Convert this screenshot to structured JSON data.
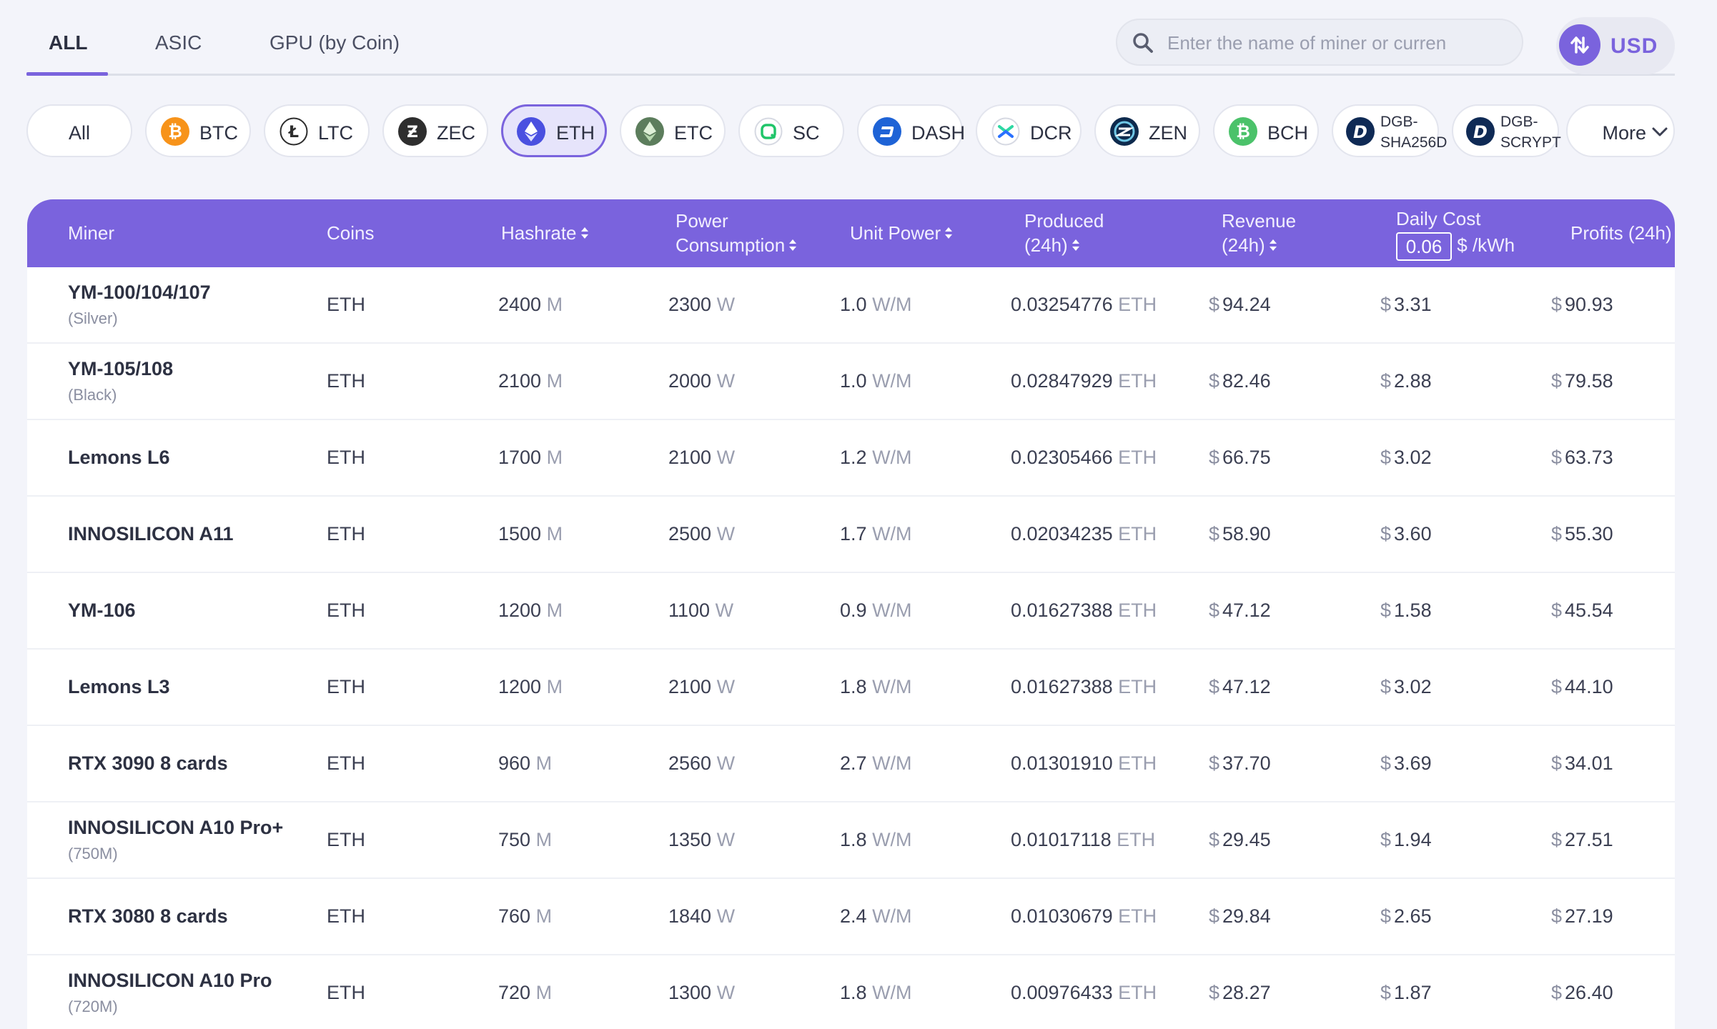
{
  "tabs": [
    {
      "label": "ALL",
      "active": true
    },
    {
      "label": "ASIC",
      "active": false
    },
    {
      "label": "GPU (by Coin)",
      "active": false
    }
  ],
  "search": {
    "placeholder": "Enter the name of miner or curren",
    "value": ""
  },
  "currency": {
    "label": "USD",
    "icon": "swap-icon"
  },
  "coins": [
    {
      "label": "All",
      "icon": "",
      "color": ""
    },
    {
      "label": "BTC",
      "icon": "btc-icon",
      "color": "#f7931a"
    },
    {
      "label": "LTC",
      "icon": "ltc-icon",
      "color": "#ffffff"
    },
    {
      "label": "ZEC",
      "icon": "zec-icon",
      "color": "#2e2e2e"
    },
    {
      "label": "ETH",
      "icon": "eth-icon",
      "color": "#4a50e0",
      "active": true
    },
    {
      "label": "ETC",
      "icon": "etc-icon",
      "color": "#5c7d5c"
    },
    {
      "label": "SC",
      "icon": "sc-icon",
      "color": "#ffffff"
    },
    {
      "label": "DASH",
      "icon": "dash-icon",
      "color": "#1e63d6"
    },
    {
      "label": "DCR",
      "icon": "dcr-icon",
      "color": "#ffffff"
    },
    {
      "label": "ZEN",
      "icon": "zen-icon",
      "color": "#0e2a4d"
    },
    {
      "label": "BCH",
      "icon": "bch-icon",
      "color": "#4bc26a"
    },
    {
      "label": "DGB-\nSHA256D",
      "line1": "DGB-",
      "line2": "SHA256D",
      "icon": "dgb-icon",
      "color": "#0f2a55"
    },
    {
      "label": "DGB-\nSCRYPT",
      "line1": "DGB-",
      "line2": "SCRYPT",
      "icon": "dgb-icon",
      "color": "#0f2a55"
    },
    {
      "label": "More",
      "icon": "chevron-down-icon"
    }
  ],
  "columns": {
    "miner": "Miner",
    "coins": "Coins",
    "hashrate": "Hashrate",
    "power_1": "Power",
    "power_2": "Consumption",
    "unit_power": "Unit Power",
    "produced_1": "Produced",
    "produced_2": "(24h)",
    "revenue_1": "Revenue",
    "revenue_2": "(24h)",
    "daily_cost_1": "Daily Cost",
    "daily_cost_value": "0.06",
    "daily_cost_unit": "$ /kWh",
    "profits": "Profits (24h)"
  },
  "units": {
    "hash": "M",
    "power": "W",
    "unit_power": "W/M",
    "coin": "ETH",
    "dollar": "$"
  },
  "rows": [
    {
      "name": "YM-100/104/107",
      "sub": "(Silver)",
      "coin": "ETH",
      "hashrate": "2400",
      "power": "2300",
      "unit_power": "1.0",
      "produced": "0.03254776",
      "revenue": "94.24",
      "cost": "3.31",
      "profit": "90.93"
    },
    {
      "name": "YM-105/108",
      "sub": "(Black)",
      "coin": "ETH",
      "hashrate": "2100",
      "power": "2000",
      "unit_power": "1.0",
      "produced": "0.02847929",
      "revenue": "82.46",
      "cost": "2.88",
      "profit": "79.58"
    },
    {
      "name": "Lemons L6",
      "sub": "",
      "coin": "ETH",
      "hashrate": "1700",
      "power": "2100",
      "unit_power": "1.2",
      "produced": "0.02305466",
      "revenue": "66.75",
      "cost": "3.02",
      "profit": "63.73"
    },
    {
      "name": "INNOSILICON A11",
      "sub": "",
      "coin": "ETH",
      "hashrate": "1500",
      "power": "2500",
      "unit_power": "1.7",
      "produced": "0.02034235",
      "revenue": "58.90",
      "cost": "3.60",
      "profit": "55.30"
    },
    {
      "name": "YM-106",
      "sub": "",
      "coin": "ETH",
      "hashrate": "1200",
      "power": "1100",
      "unit_power": "0.9",
      "produced": "0.01627388",
      "revenue": "47.12",
      "cost": "1.58",
      "profit": "45.54"
    },
    {
      "name": "Lemons L3",
      "sub": "",
      "coin": "ETH",
      "hashrate": "1200",
      "power": "2100",
      "unit_power": "1.8",
      "produced": "0.01627388",
      "revenue": "47.12",
      "cost": "3.02",
      "profit": "44.10"
    },
    {
      "name": "RTX 3090 8 cards",
      "sub": "",
      "coin": "ETH",
      "hashrate": "960",
      "power": "2560",
      "unit_power": "2.7",
      "produced": "0.01301910",
      "revenue": "37.70",
      "cost": "3.69",
      "profit": "34.01"
    },
    {
      "name": "INNOSILICON A10 Pro+",
      "sub": "(750M)",
      "coin": "ETH",
      "hashrate": "750",
      "power": "1350",
      "unit_power": "1.8",
      "produced": "0.01017118",
      "revenue": "29.45",
      "cost": "1.94",
      "profit": "27.51"
    },
    {
      "name": "RTX 3080 8 cards",
      "sub": "",
      "coin": "ETH",
      "hashrate": "760",
      "power": "1840",
      "unit_power": "2.4",
      "produced": "0.01030679",
      "revenue": "29.84",
      "cost": "2.65",
      "profit": "27.19"
    },
    {
      "name": "INNOSILICON A10 Pro",
      "sub": "(720M)",
      "coin": "ETH",
      "hashrate": "720",
      "power": "1300",
      "unit_power": "1.8",
      "produced": "0.00976433",
      "revenue": "28.27",
      "cost": "1.87",
      "profit": "26.40"
    }
  ],
  "colors": {
    "accent": "#7a63dd",
    "background": "#f3f4fa",
    "muted": "#9a9eaf"
  }
}
